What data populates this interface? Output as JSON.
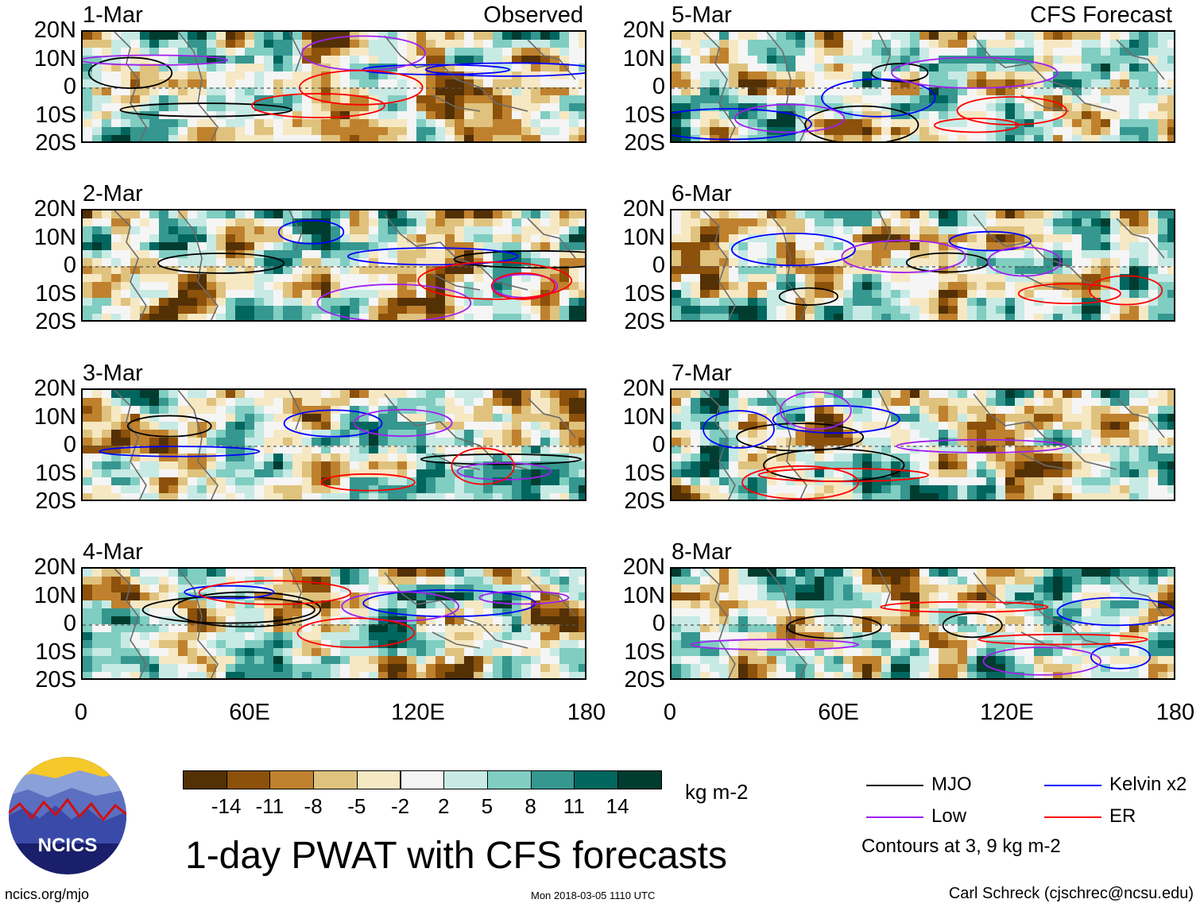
{
  "chart_data": {
    "type": "heatmap",
    "title": "1-day PWAT with CFS forecasts",
    "panels": [
      {
        "date": "1-Mar",
        "tag": "Observed",
        "col": 0,
        "row": 0
      },
      {
        "date": "2-Mar",
        "tag": "",
        "col": 0,
        "row": 1
      },
      {
        "date": "3-Mar",
        "tag": "",
        "col": 0,
        "row": 2
      },
      {
        "date": "4-Mar",
        "tag": "",
        "col": 0,
        "row": 3
      },
      {
        "date": "5-Mar",
        "tag": "CFS Forecast",
        "col": 1,
        "row": 0
      },
      {
        "date": "6-Mar",
        "tag": "",
        "col": 1,
        "row": 1
      },
      {
        "date": "7-Mar",
        "tag": "",
        "col": 1,
        "row": 2
      },
      {
        "date": "8-Mar",
        "tag": "",
        "col": 1,
        "row": 3
      }
    ],
    "lat_ticks": [
      "20N",
      "10N",
      "0",
      "10S",
      "20S"
    ],
    "lon_ticks": [
      "0",
      "60E",
      "120E",
      "180"
    ],
    "xlim": [
      0,
      180
    ],
    "ylim": [
      -20,
      20
    ],
    "colorbar": {
      "unit": "kg m-2",
      "levels": [
        "-14",
        "-11",
        "-8",
        "-5",
        "-2",
        "2",
        "5",
        "8",
        "11",
        "14"
      ],
      "colors": [
        "#543005",
        "#8c510a",
        "#bf812d",
        "#dfc27d",
        "#f6e8c3",
        "#f5f5f5",
        "#c7eae5",
        "#80cdc1",
        "#35978f",
        "#01665e",
        "#003c30"
      ]
    },
    "legend": [
      {
        "label": "MJO",
        "color": "#000000"
      },
      {
        "label": "Kelvin x2",
        "color": "#0000ff"
      },
      {
        "label": "Low",
        "color": "#a020f0"
      },
      {
        "label": "ER",
        "color": "#ff0000"
      }
    ],
    "contour_note": "Contours at 3, 9 kg m-2"
  },
  "footer": {
    "logo_text": "NCICS",
    "left": "ncics.org/mjo",
    "center": "Mon 2018-03-05 1110 UTC",
    "right": "Carl Schreck (cjschrec@ncsu.edu)"
  }
}
